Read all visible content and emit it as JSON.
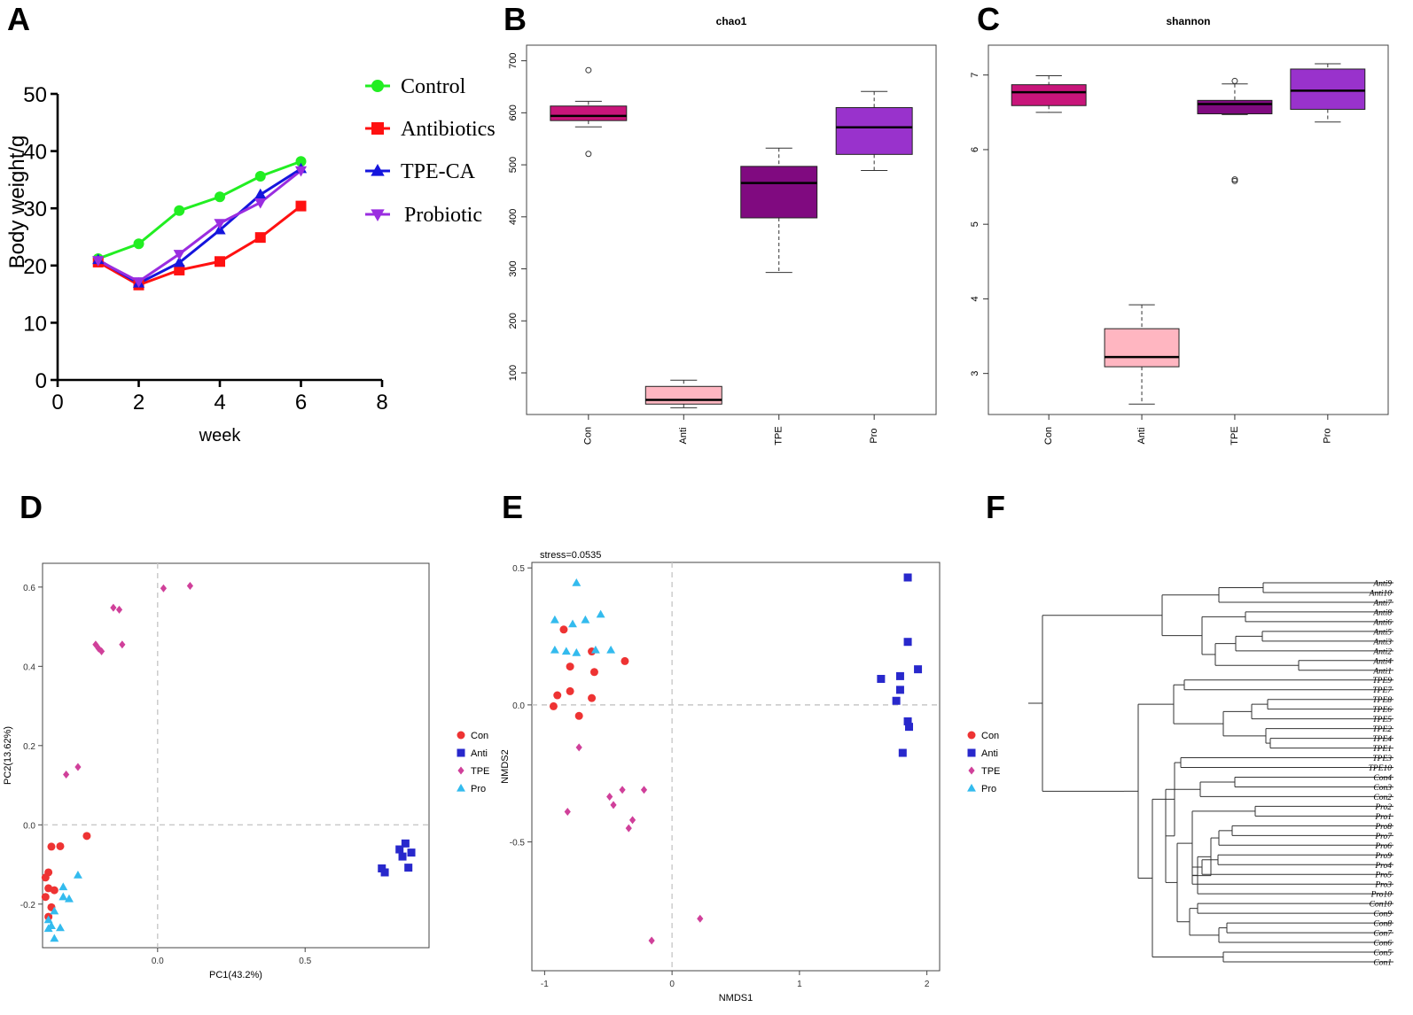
{
  "panels": {
    "A": {
      "letter": "A"
    },
    "B": {
      "letter": "B"
    },
    "C": {
      "letter": "C"
    },
    "D": {
      "letter": "D"
    },
    "E": {
      "letter": "E"
    },
    "F": {
      "letter": "F"
    }
  },
  "chart_data": [
    {
      "id": "A",
      "type": "line",
      "xlabel": "week",
      "ylabel": "Body weight/g",
      "xlim": [
        0,
        8
      ],
      "ylim": [
        0,
        50
      ],
      "xticks": [
        "0",
        "2",
        "4",
        "6",
        "8"
      ],
      "yticks": [
        "0",
        "10",
        "20",
        "30",
        "40",
        "50"
      ],
      "x": [
        1,
        2,
        3,
        4,
        5,
        6
      ],
      "series": [
        {
          "name": "Control",
          "color": "#22ee22",
          "marker": "circle",
          "values": [
            21.2,
            23.8,
            29.6,
            32.0,
            35.6,
            38.2
          ]
        },
        {
          "name": "Antibiotics",
          "color": "#ff1111",
          "marker": "square",
          "values": [
            20.6,
            16.6,
            19.2,
            20.7,
            24.9,
            30.4
          ]
        },
        {
          "name": "TPE-CA",
          "color": "#1515dd",
          "marker": "triangle",
          "values": [
            21.0,
            16.9,
            20.5,
            26.2,
            32.4,
            36.9
          ]
        },
        {
          "name": "Probiotic",
          "color": "#9a2de0",
          "marker": "triangle-down",
          "values": [
            20.9,
            17.2,
            22.0,
            27.4,
            31.0,
            36.6
          ]
        }
      ]
    },
    {
      "id": "B",
      "type": "box",
      "title": "chao1",
      "ylim": [
        20,
        730
      ],
      "yticks": [
        "100",
        "200",
        "300",
        "400",
        "500",
        "600",
        "700"
      ],
      "categories": [
        "Con",
        "Anti",
        "TPE",
        "Pro"
      ],
      "boxes": [
        {
          "name": "Con",
          "color": "#c8157a",
          "low": 573,
          "q1": 585,
          "median": 594,
          "q3": 613,
          "high": 622,
          "outliers": [
            682,
            521
          ]
        },
        {
          "name": "Anti",
          "color": "#ffb6c1",
          "low": 33,
          "q1": 40,
          "median": 48,
          "q3": 74,
          "high": 86,
          "outliers": []
        },
        {
          "name": "TPE",
          "color": "#800a80",
          "low": 293,
          "q1": 398,
          "median": 465,
          "q3": 497,
          "high": 532,
          "outliers": []
        },
        {
          "name": "Pro",
          "color": "#9932cc",
          "low": 489,
          "q1": 520,
          "median": 572,
          "q3": 610,
          "high": 641,
          "outliers": []
        }
      ]
    },
    {
      "id": "C",
      "type": "box",
      "title": "shannon",
      "ylim": [
        2.45,
        7.4
      ],
      "yticks": [
        "3",
        "4",
        "5",
        "6",
        "7"
      ],
      "categories": [
        "Con",
        "Anti",
        "TPE",
        "Pro"
      ],
      "boxes": [
        {
          "name": "Con",
          "color": "#c8157a",
          "low": 6.5,
          "q1": 6.59,
          "median": 6.77,
          "q3": 6.87,
          "high": 6.99,
          "outliers": []
        },
        {
          "name": "Anti",
          "color": "#ffb6c1",
          "low": 2.59,
          "q1": 3.09,
          "median": 3.22,
          "q3": 3.6,
          "high": 3.92,
          "outliers": []
        },
        {
          "name": "TPE",
          "color": "#800a80",
          "low": 6.47,
          "q1": 6.48,
          "median": 6.61,
          "q3": 6.66,
          "high": 6.88,
          "outliers": [
            6.92,
            5.6,
            5.58
          ]
        },
        {
          "name": "Pro",
          "color": "#9932cc",
          "low": 6.37,
          "q1": 6.54,
          "median": 6.79,
          "q3": 7.08,
          "high": 7.15,
          "outliers": []
        }
      ]
    },
    {
      "id": "D",
      "type": "scatter",
      "xlabel": "PC1(43.2%)",
      "ylabel": "PC2(13.62%)",
      "xlim": [
        -0.39,
        0.92
      ],
      "ylim": [
        -0.31,
        0.66
      ],
      "xticks": [
        {
          "value": 0.0,
          "label": "0.0"
        },
        {
          "value": 0.5,
          "label": "0.5"
        }
      ],
      "yticks": [
        {
          "value": -0.2,
          "label": "-0.2"
        },
        {
          "value": 0.0,
          "label": "0.0"
        },
        {
          "value": 0.2,
          "label": "0.2"
        },
        {
          "value": 0.4,
          "label": "0.4"
        },
        {
          "value": 0.6,
          "label": "0.6"
        }
      ],
      "zero_lines": true,
      "legend": [
        {
          "name": "Con",
          "color": "#ee3333",
          "marker": "circle"
        },
        {
          "name": "Anti",
          "color": "#2828cc",
          "marker": "square"
        },
        {
          "name": "TPE",
          "color": "#d0409a",
          "marker": "diamond"
        },
        {
          "name": "Pro",
          "color": "#33bbee",
          "marker": "triangle"
        }
      ],
      "groups": [
        {
          "name": "Con",
          "points": [
            [
              -0.24,
              -0.028
            ],
            [
              -0.36,
              -0.055
            ],
            [
              -0.33,
              -0.054
            ],
            [
              -0.37,
              -0.12
            ],
            [
              -0.38,
              -0.133
            ],
            [
              -0.37,
              -0.16
            ],
            [
              -0.35,
              -0.165
            ],
            [
              -0.38,
              -0.182
            ],
            [
              -0.36,
              -0.208
            ],
            [
              -0.37,
              -0.232
            ]
          ]
        },
        {
          "name": "Anti",
          "points": [
            [
              0.84,
              -0.047
            ],
            [
              0.82,
              -0.062
            ],
            [
              0.86,
              -0.07
            ],
            [
              0.83,
              -0.08
            ],
            [
              0.85,
              -0.108
            ],
            [
              0.76,
              -0.11
            ],
            [
              0.77,
              -0.12
            ]
          ]
        },
        {
          "name": "TPE",
          "points": [
            [
              0.11,
              0.603
            ],
            [
              0.02,
              0.597
            ],
            [
              -0.15,
              0.548
            ],
            [
              -0.13,
              0.543
            ],
            [
              -0.21,
              0.455
            ],
            [
              -0.2,
              0.445
            ],
            [
              -0.19,
              0.438
            ],
            [
              -0.12,
              0.455
            ],
            [
              -0.27,
              0.146
            ],
            [
              -0.31,
              0.127
            ]
          ]
        },
        {
          "name": "Pro",
          "points": [
            [
              -0.27,
              -0.127
            ],
            [
              -0.32,
              -0.157
            ],
            [
              -0.32,
              -0.182
            ],
            [
              -0.3,
              -0.187
            ],
            [
              -0.35,
              -0.218
            ],
            [
              -0.37,
              -0.24
            ],
            [
              -0.36,
              -0.255
            ],
            [
              -0.33,
              -0.26
            ],
            [
              -0.37,
              -0.262
            ],
            [
              -0.35,
              -0.287
            ]
          ]
        }
      ]
    },
    {
      "id": "E",
      "type": "scatter",
      "annotation": "stress=0.0535",
      "xlabel": "NMDS1",
      "ylabel": "NMDS2",
      "xlim": [
        -1.1,
        2.1
      ],
      "ylim": [
        -0.97,
        0.52
      ],
      "xticks": [
        {
          "value": -1,
          "label": "-1"
        },
        {
          "value": 0,
          "label": "0"
        },
        {
          "value": 1,
          "label": "1"
        },
        {
          "value": 2,
          "label": "2"
        }
      ],
      "yticks": [
        {
          "value": -0.5,
          "label": "-0.5"
        },
        {
          "value": 0.0,
          "label": "0.0"
        },
        {
          "value": 0.5,
          "label": "0.5"
        }
      ],
      "zero_lines": true,
      "legend": [
        {
          "name": "Con",
          "color": "#ee3333",
          "marker": "circle"
        },
        {
          "name": "Anti",
          "color": "#2828cc",
          "marker": "square"
        },
        {
          "name": "TPE",
          "color": "#d0409a",
          "marker": "diamond"
        },
        {
          "name": "Pro",
          "color": "#33bbee",
          "marker": "triangle"
        }
      ],
      "groups": [
        {
          "name": "Con",
          "points": [
            [
              -0.85,
              0.275
            ],
            [
              -0.63,
              0.195
            ],
            [
              -0.37,
              0.16
            ],
            [
              -0.8,
              0.14
            ],
            [
              -0.61,
              0.12
            ],
            [
              -0.9,
              0.035
            ],
            [
              -0.8,
              0.05
            ],
            [
              -0.63,
              0.025
            ],
            [
              -0.93,
              -0.005
            ],
            [
              -0.73,
              -0.04
            ]
          ]
        },
        {
          "name": "Anti",
          "points": [
            [
              1.85,
              0.465
            ],
            [
              1.85,
              0.23
            ],
            [
              1.93,
              0.13
            ],
            [
              1.64,
              0.095
            ],
            [
              1.79,
              0.105
            ],
            [
              1.79,
              0.055
            ],
            [
              1.76,
              0.015
            ],
            [
              1.85,
              -0.06
            ],
            [
              1.86,
              -0.08
            ],
            [
              1.81,
              -0.175
            ]
          ]
        },
        {
          "name": "TPE",
          "points": [
            [
              -0.73,
              -0.155
            ],
            [
              -0.22,
              -0.31
            ],
            [
              -0.39,
              -0.31
            ],
            [
              -0.49,
              -0.335
            ],
            [
              -0.46,
              -0.365
            ],
            [
              -0.31,
              -0.42
            ],
            [
              -0.34,
              -0.45
            ],
            [
              -0.82,
              -0.39
            ],
            [
              -0.16,
              -0.86
            ],
            [
              0.22,
              -0.78
            ]
          ]
        },
        {
          "name": "Pro",
          "points": [
            [
              -0.75,
              0.445
            ],
            [
              -0.92,
              0.31
            ],
            [
              -0.78,
              0.295
            ],
            [
              -0.68,
              0.31
            ],
            [
              -0.56,
              0.33
            ],
            [
              -0.92,
              0.2
            ],
            [
              -0.83,
              0.195
            ],
            [
              -0.75,
              0.19
            ],
            [
              -0.6,
              0.2
            ],
            [
              -0.48,
              0.2
            ]
          ]
        }
      ]
    },
    {
      "id": "F",
      "type": "dendrogram",
      "leaves": [
        "Anti9",
        "Anti10",
        "Anti7",
        "Anti8",
        "Anti6",
        "Anti5",
        "Anti3",
        "Anti2",
        "Anti4",
        "Anti1",
        "TPE9",
        "TPE7",
        "TPE8",
        "TPE6",
        "TPE5",
        "TPE2",
        "TPE4",
        "TPE1",
        "TPE3",
        "TPE10",
        "Con4",
        "Con3",
        "Con2",
        "Pro2",
        "Pro1",
        "Pro8",
        "Pro7",
        "Pro6",
        "Pro9",
        "Pro4",
        "Pro5",
        "Pro3",
        "Pro10",
        "Con10",
        "Con9",
        "Con8",
        "Con7",
        "Con6",
        "Con5",
        "Con1"
      ]
    }
  ]
}
